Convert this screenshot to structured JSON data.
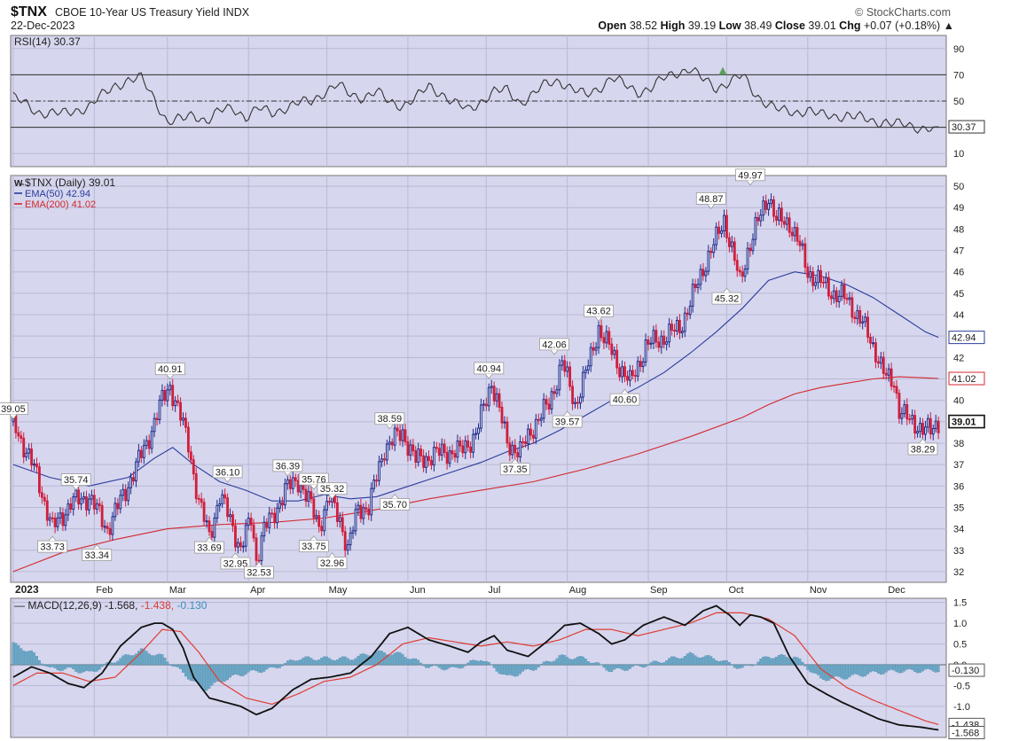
{
  "header": {
    "symbol": "$TNX",
    "description": "CBOE 10-Year US Treasury Yield INDX",
    "date": "22-Dec-2023",
    "brand": "© StockCharts.com",
    "open_label": "Open",
    "open": "38.52",
    "high_label": "High",
    "high": "39.19",
    "low_label": "Low",
    "low": "38.49",
    "close_label": "Close",
    "close": "39.01",
    "chg_label": "Chg",
    "chg": "+0.07 (+0.18%)",
    "chg_arrow": "▲"
  },
  "chart_data": [
    {
      "type": "line",
      "title": "RSI(14) 30.37",
      "panel": "rsi",
      "ylim": [
        0,
        100
      ],
      "y_ticks": [
        90,
        70,
        50,
        30,
        10
      ],
      "reference_lines": [
        70,
        50,
        30
      ],
      "last_value": 30.37,
      "last_value_label": "30.37",
      "series": [
        {
          "name": "RSI(14)",
          "color": "#333333",
          "x": [
            1,
            10,
            20,
            30,
            40,
            45,
            50,
            55,
            60,
            66,
            70,
            75,
            80,
            85,
            90,
            95,
            100,
            105,
            110,
            115,
            120,
            125,
            130,
            135,
            140,
            145,
            150,
            155,
            160,
            165,
            170,
            175,
            180,
            185,
            190,
            195,
            200,
            205,
            210,
            215,
            220,
            225,
            230,
            235,
            240,
            245,
            250,
            255,
            260,
            265,
            270,
            275,
            280,
            285,
            290,
            295,
            300,
            305,
            310,
            315,
            320,
            325,
            330,
            335,
            340,
            345,
            350,
            355
          ],
          "values": [
            53,
            42,
            40,
            46,
            62,
            66,
            67,
            52,
            34,
            36,
            40,
            35,
            42,
            45,
            38,
            44,
            41,
            45,
            48,
            50,
            57,
            62,
            55,
            53,
            57,
            49,
            47,
            52,
            61,
            56,
            48,
            43,
            50,
            57,
            58,
            49,
            55,
            63,
            66,
            59,
            54,
            60,
            68,
            62,
            57,
            60,
            67,
            72,
            75,
            66,
            60,
            65,
            69,
            55,
            48,
            42,
            41,
            44,
            39,
            38,
            40,
            37,
            34,
            35,
            32,
            30,
            30,
            30.37
          ]
        }
      ]
    },
    {
      "type": "candlestick",
      "title": "$TNX (Daily) 39.01",
      "panel": "price",
      "ylim": [
        31.5,
        50.5
      ],
      "y_ticks": [
        32,
        33,
        34,
        35,
        36,
        37,
        38,
        39,
        40,
        41,
        42,
        43,
        44,
        45,
        46,
        47,
        48,
        49,
        50
      ],
      "x_ticks": [
        {
          "label": "2023",
          "x": 1,
          "bold": true
        },
        {
          "label": "Feb",
          "x": 32
        },
        {
          "label": "Mar",
          "x": 60
        },
        {
          "label": "Apr",
          "x": 91
        },
        {
          "label": "May",
          "x": 121
        },
        {
          "label": "Jun",
          "x": 152
        },
        {
          "label": "Jul",
          "x": 182
        },
        {
          "label": "Aug",
          "x": 213
        },
        {
          "label": "Sep",
          "x": 244
        },
        {
          "label": "Oct",
          "x": 274
        },
        {
          "label": "Nov",
          "x": 305
        },
        {
          "label": "Dec",
          "x": 335
        }
      ],
      "close": {
        "x": [
          1,
          10,
          16,
          23,
          30,
          37,
          44,
          52,
          58,
          61,
          64,
          68,
          72,
          76,
          80,
          84,
          88,
          92,
          94,
          97,
          100,
          105,
          110,
          114,
          118,
          122,
          126,
          129,
          133,
          137,
          143,
          150,
          155,
          161,
          166,
          172,
          178,
          184,
          186,
          190,
          195,
          201,
          206,
          211,
          216,
          222,
          225,
          227,
          232,
          237,
          243,
          247,
          251,
          256,
          260,
          265,
          270,
          273,
          276,
          279,
          282,
          285,
          290,
          293,
          298,
          301,
          305,
          310,
          315,
          320,
          325,
          331,
          335,
          338,
          340,
          344,
          348,
          352,
          355
        ],
        "values": [
          39.0,
          36.5,
          34.0,
          35.2,
          35.5,
          34.0,
          35.8,
          38.0,
          40.0,
          40.7,
          39.6,
          38.0,
          35.2,
          33.7,
          35.5,
          34.5,
          33.0,
          34.5,
          32.6,
          34.0,
          34.5,
          35.8,
          36.3,
          35.3,
          34.2,
          35.4,
          34.5,
          33.0,
          35.0,
          35.0,
          37.8,
          38.5,
          37.2,
          37.4,
          37.6,
          37.6,
          38.4,
          40.9,
          40.0,
          38.0,
          37.6,
          39.0,
          39.8,
          41.8,
          39.8,
          42.0,
          43.4,
          42.9,
          41.8,
          40.8,
          42.5,
          42.8,
          43.0,
          43.4,
          44.5,
          46.2,
          47.5,
          48.5,
          47.0,
          45.5,
          47.0,
          48.0,
          49.6,
          48.4,
          48.3,
          47.5,
          46.0,
          45.5,
          45.0,
          44.7,
          43.8,
          42.3,
          41.0,
          40.9,
          39.6,
          39.0,
          38.8,
          38.5,
          39.01
        ]
      },
      "candles_note": "alternating up (blue) and down (red) candles",
      "series": [
        {
          "name": "EMA(50)",
          "label": "EMA(50) 42.94",
          "color": "#2a3b9a",
          "last_value": 42.94,
          "x": [
            1,
            15,
            30,
            45,
            55,
            62,
            70,
            80,
            90,
            100,
            110,
            120,
            130,
            140,
            150,
            160,
            170,
            180,
            190,
            200,
            210,
            220,
            230,
            240,
            250,
            260,
            270,
            280,
            290,
            300,
            310,
            320,
            330,
            340,
            350,
            355
          ],
          "values": [
            37.0,
            36.4,
            36.0,
            36.4,
            37.3,
            37.8,
            37.0,
            36.2,
            35.8,
            35.3,
            35.3,
            35.6,
            35.4,
            35.5,
            35.9,
            36.3,
            36.7,
            37.1,
            37.6,
            38.0,
            38.6,
            39.3,
            40.0,
            40.6,
            41.3,
            42.2,
            43.2,
            44.3,
            45.6,
            46.0,
            45.8,
            45.4,
            44.8,
            44.0,
            43.2,
            42.94
          ]
        },
        {
          "name": "EMA(200)",
          "label": "EMA(200) 41.02",
          "color": "#d2282e",
          "last_value": 41.02,
          "x": [
            1,
            20,
            40,
            60,
            80,
            100,
            120,
            140,
            160,
            180,
            200,
            220,
            240,
            260,
            280,
            290,
            300,
            310,
            320,
            330,
            340,
            350,
            355
          ],
          "values": [
            32.0,
            32.9,
            33.5,
            34.0,
            34.2,
            34.3,
            34.5,
            34.9,
            35.4,
            35.8,
            36.2,
            36.8,
            37.5,
            38.3,
            39.2,
            39.8,
            40.3,
            40.6,
            40.8,
            41.0,
            41.1,
            41.05,
            41.02
          ]
        }
      ],
      "annotations": [
        {
          "label": "39.05",
          "x": 1,
          "y": 39.05,
          "pos": "above"
        },
        {
          "label": "33.73",
          "x": 16,
          "y": 33.73,
          "pos": "below"
        },
        {
          "label": "35.74",
          "x": 25,
          "y": 35.74,
          "pos": "above"
        },
        {
          "label": "33.34",
          "x": 33,
          "y": 33.34,
          "pos": "below"
        },
        {
          "label": "40.91",
          "x": 61,
          "y": 40.91,
          "pos": "above"
        },
        {
          "label": "33.69",
          "x": 76,
          "y": 33.69,
          "pos": "below"
        },
        {
          "label": "36.10",
          "x": 83,
          "y": 36.1,
          "pos": "above"
        },
        {
          "label": "32.95",
          "x": 86,
          "y": 32.95,
          "pos": "below"
        },
        {
          "label": "32.53",
          "x": 95,
          "y": 32.53,
          "pos": "below"
        },
        {
          "label": "36.39",
          "x": 106,
          "y": 36.39,
          "pos": "above"
        },
        {
          "label": "35.76",
          "x": 116,
          "y": 35.76,
          "pos": "above"
        },
        {
          "label": "33.75",
          "x": 116,
          "y": 33.75,
          "pos": "below"
        },
        {
          "label": "35.32",
          "x": 123,
          "y": 35.32,
          "pos": "above"
        },
        {
          "label": "32.96",
          "x": 123,
          "y": 32.96,
          "pos": "below"
        },
        {
          "label": "38.59",
          "x": 145,
          "y": 38.59,
          "pos": "above"
        },
        {
          "label": "35.70",
          "x": 147,
          "y": 35.7,
          "pos": "below"
        },
        {
          "label": "40.94",
          "x": 183,
          "y": 40.94,
          "pos": "above"
        },
        {
          "label": "37.35",
          "x": 193,
          "y": 37.35,
          "pos": "below"
        },
        {
          "label": "42.06",
          "x": 208,
          "y": 42.06,
          "pos": "above"
        },
        {
          "label": "39.57",
          "x": 213,
          "y": 39.57,
          "pos": "below"
        },
        {
          "label": "43.62",
          "x": 225,
          "y": 43.62,
          "pos": "above"
        },
        {
          "label": "40.60",
          "x": 235,
          "y": 40.6,
          "pos": "below"
        },
        {
          "label": "48.87",
          "x": 268,
          "y": 48.87,
          "pos": "above"
        },
        {
          "label": "45.32",
          "x": 274,
          "y": 45.32,
          "pos": "below"
        },
        {
          "label": "49.97",
          "x": 283,
          "y": 49.97,
          "pos": "above"
        },
        {
          "label": "38.29",
          "x": 349,
          "y": 38.29,
          "pos": "below"
        }
      ],
      "legend": [
        {
          "label": "$TNX (Daily) 39.01",
          "color": "#222222"
        },
        {
          "label": "EMA(50) 42.94",
          "color": "#2a3b9a"
        },
        {
          "label": "EMA(200) 41.02",
          "color": "#d2282e"
        }
      ],
      "right_labels": [
        {
          "label": "42.94",
          "y": 42.94,
          "color": "#2a3b9a"
        },
        {
          "label": "41.02",
          "y": 41.02,
          "color": "#d2282e"
        },
        {
          "label": "39.01",
          "y": 39.01,
          "color": "#111111"
        }
      ]
    },
    {
      "type": "line",
      "title": "MACD(12,26,9)",
      "panel": "macd",
      "ylim": [
        -1.75,
        1.6
      ],
      "y_ticks": [
        "1.5",
        "1.0",
        "0.5",
        "0.0",
        "-0.5",
        "-1.0"
      ],
      "legend_title": "MACD(12,26,9) -1.568, -1.438, -0.130",
      "legend_values": [
        "-1.568",
        "-1.438",
        "-0.130"
      ],
      "right_labels": [
        {
          "label": "-0.130",
          "y": -0.13
        },
        {
          "label": "-1.438",
          "y": -1.438
        },
        {
          "label": "-1.568",
          "y": -1.568
        }
      ],
      "series": [
        {
          "name": "MACD",
          "color": "#111111",
          "x": [
            1,
            8,
            15,
            22,
            28,
            35,
            42,
            50,
            55,
            58,
            62,
            66,
            70,
            76,
            82,
            88,
            94,
            100,
            108,
            115,
            122,
            130,
            138,
            145,
            152,
            160,
            168,
            175,
            180,
            185,
            190,
            198,
            205,
            212,
            218,
            225,
            230,
            235,
            242,
            250,
            258,
            265,
            270,
            275,
            279,
            283,
            287,
            292,
            298,
            305,
            312,
            318,
            325,
            332,
            340,
            348,
            355
          ],
          "values": [
            -0.3,
            -0.05,
            -0.2,
            -0.45,
            -0.55,
            -0.2,
            0.45,
            0.9,
            1.0,
            1.0,
            0.85,
            0.4,
            -0.3,
            -0.8,
            -0.9,
            -1.0,
            -1.2,
            -1.05,
            -0.6,
            -0.35,
            -0.3,
            -0.2,
            0.2,
            0.75,
            0.9,
            0.6,
            0.45,
            0.3,
            0.55,
            0.7,
            0.35,
            0.2,
            0.55,
            0.95,
            1.0,
            0.75,
            0.5,
            0.6,
            0.95,
            1.15,
            0.95,
            1.3,
            1.42,
            1.2,
            0.95,
            1.2,
            1.15,
            1.0,
            0.2,
            -0.45,
            -0.7,
            -0.9,
            -1.1,
            -1.3,
            -1.45,
            -1.5,
            -1.568
          ]
        },
        {
          "name": "Signal",
          "color": "#e03c31",
          "x": [
            1,
            10,
            20,
            30,
            40,
            50,
            58,
            65,
            72,
            80,
            90,
            100,
            110,
            120,
            130,
            140,
            150,
            160,
            170,
            180,
            190,
            200,
            210,
            220,
            230,
            240,
            250,
            260,
            270,
            280,
            290,
            300,
            310,
            320,
            330,
            340,
            350,
            355
          ],
          "values": [
            -0.5,
            -0.2,
            -0.2,
            -0.4,
            -0.3,
            0.3,
            0.85,
            0.8,
            0.3,
            -0.4,
            -0.8,
            -0.95,
            -0.7,
            -0.4,
            -0.3,
            0.0,
            0.5,
            0.65,
            0.55,
            0.45,
            0.55,
            0.45,
            0.6,
            0.85,
            0.85,
            0.7,
            0.85,
            1.0,
            1.25,
            1.25,
            1.1,
            0.7,
            -0.1,
            -0.55,
            -0.85,
            -1.1,
            -1.35,
            -1.438
          ]
        }
      ],
      "histogram": {
        "name": "Histogram",
        "color": "#6aa8c6",
        "x": [
          1,
          8,
          15,
          22,
          30,
          40,
          50,
          58,
          66,
          74,
          82,
          90,
          100,
          110,
          120,
          130,
          140,
          150,
          160,
          170,
          180,
          190,
          200,
          210,
          220,
          230,
          240,
          250,
          260,
          270,
          280,
          290,
          300,
          310,
          320,
          330,
          340,
          350,
          355
        ],
        "values": [
          0.5,
          0.3,
          -0.1,
          -0.1,
          -0.2,
          0.1,
          0.35,
          0.2,
          -0.2,
          -0.6,
          -0.35,
          -0.2,
          -0.1,
          0.15,
          0.15,
          0.15,
          0.3,
          0.25,
          -0.05,
          -0.1,
          0.15,
          -0.3,
          -0.1,
          0.2,
          0.15,
          -0.15,
          -0.05,
          0.1,
          0.25,
          0.15,
          -0.1,
          0.2,
          0.2,
          -0.35,
          -0.3,
          -0.2,
          -0.15,
          -0.15,
          -0.13
        ]
      }
    }
  ]
}
